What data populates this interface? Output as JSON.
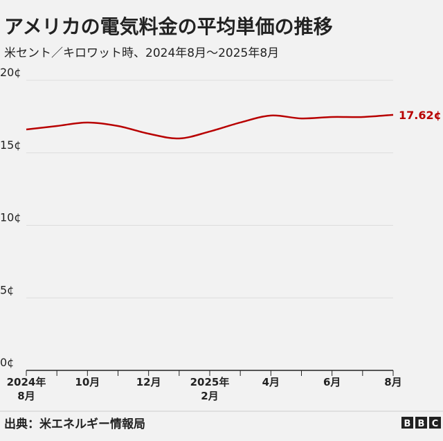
{
  "chart_data": {
    "type": "line",
    "title": "アメリカの電気料金の平均単価の推移",
    "subtitle": "米セント／キロワット時、2024年8月～2025年8月",
    "categories": [
      "2024年\n8月",
      null,
      "10月",
      null,
      "12月",
      null,
      "2025年\n2月",
      null,
      "4月",
      null,
      "6月",
      null,
      "8月"
    ],
    "series": [
      {
        "color": "#b80000",
        "values": [
          16.61,
          16.85,
          17.09,
          16.85,
          16.32,
          15.99,
          16.47,
          17.09,
          17.57,
          17.37,
          17.47,
          17.47,
          17.62
        ],
        "value_labels": [
          null,
          null,
          null,
          null,
          null,
          null,
          null,
          null,
          null,
          null,
          null,
          null,
          "17.62¢"
        ]
      }
    ],
    "ylim": [
      0,
      20
    ],
    "yticks": [
      {
        "value": 0,
        "label": "0¢"
      },
      {
        "value": 5,
        "label": "5¢"
      },
      {
        "value": 10,
        "label": "10¢"
      },
      {
        "value": 15,
        "label": "15¢"
      },
      {
        "value": 20,
        "label": "20¢"
      }
    ],
    "grid": true
  },
  "footer": {
    "source": "出典：米エネルギー情報局",
    "logo": [
      "B",
      "B",
      "C"
    ]
  }
}
